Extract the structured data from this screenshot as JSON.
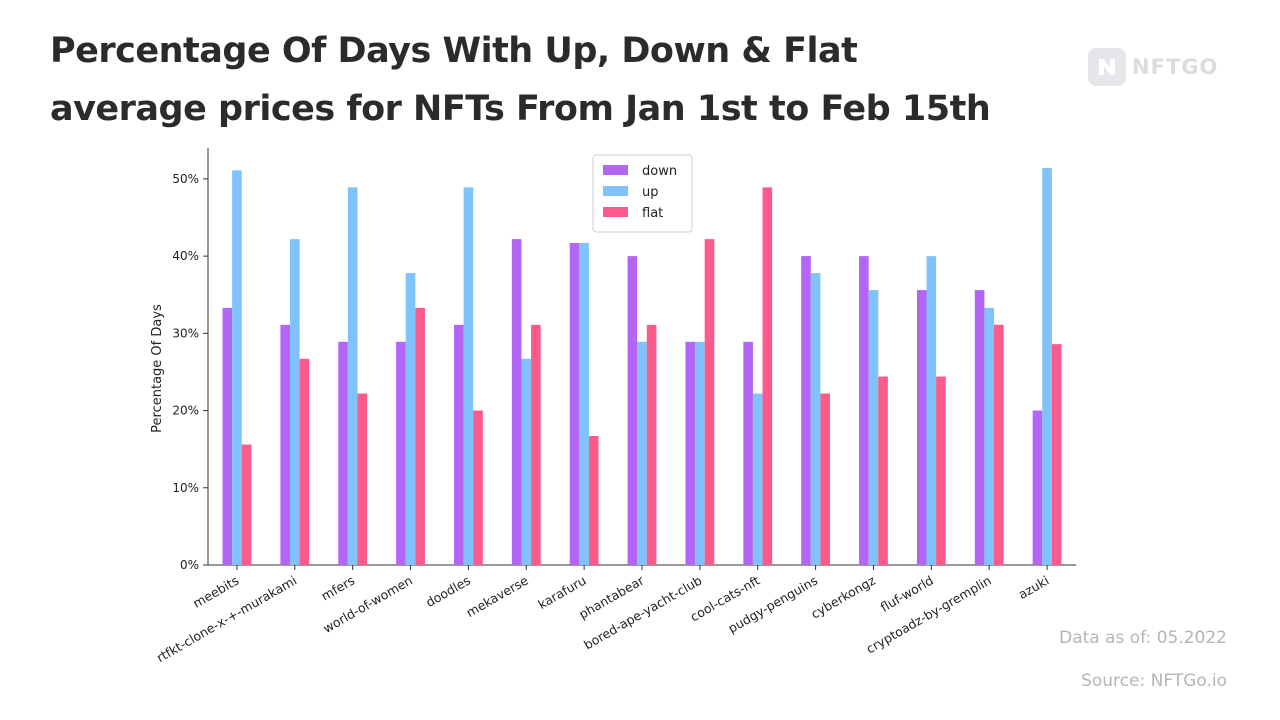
{
  "header": {
    "title_line1": "Percentage Of Days With Up, Down & Flat",
    "title_line2": "average prices for NFTs From Jan 1st to Feb 15th"
  },
  "brand": {
    "name": "NFTGO",
    "icon": "nftgo-logo-icon"
  },
  "footer": {
    "date_text": "Data as of: 05.2022",
    "source_text": "Source: NFTGo.io"
  },
  "chart_data": {
    "type": "bar",
    "ylabel": "Percentage Of Days",
    "xlabel": "",
    "ylim": [
      0,
      54
    ],
    "yticks": [
      0,
      10,
      20,
      30,
      40,
      50
    ],
    "ytick_labels": [
      "0%",
      "10%",
      "20%",
      "30%",
      "40%",
      "50%"
    ],
    "grid": false,
    "legend_position": "top-center",
    "categories": [
      "meebits",
      "rtfkt-clone-x-+-murakami",
      "mfers",
      "world-of-women",
      "doodles",
      "mekaverse",
      "karafuru",
      "phantabear",
      "bored-ape-yacht-club",
      "cool-cats-nft",
      "pudgy-penguins",
      "cyberkongz",
      "fluf-world",
      "cryptoadz-by-gremplin",
      "azuki"
    ],
    "series": [
      {
        "name": "down",
        "color": "#b366f5",
        "values": [
          33.3,
          31.1,
          28.9,
          28.9,
          31.1,
          42.2,
          41.7,
          40.0,
          28.9,
          28.9,
          40.0,
          40.0,
          35.6,
          35.6,
          20.0
        ]
      },
      {
        "name": "up",
        "color": "#80c2fb",
        "values": [
          51.1,
          42.2,
          48.9,
          37.8,
          48.9,
          26.7,
          41.7,
          28.9,
          28.9,
          22.2,
          37.8,
          35.6,
          40.0,
          33.3,
          51.4
        ]
      },
      {
        "name": "flat",
        "color": "#fb5a8a",
        "values": [
          15.6,
          26.7,
          22.2,
          33.3,
          20.0,
          31.1,
          16.7,
          31.1,
          42.2,
          48.9,
          22.2,
          24.4,
          24.4,
          31.1,
          28.6
        ]
      }
    ]
  }
}
